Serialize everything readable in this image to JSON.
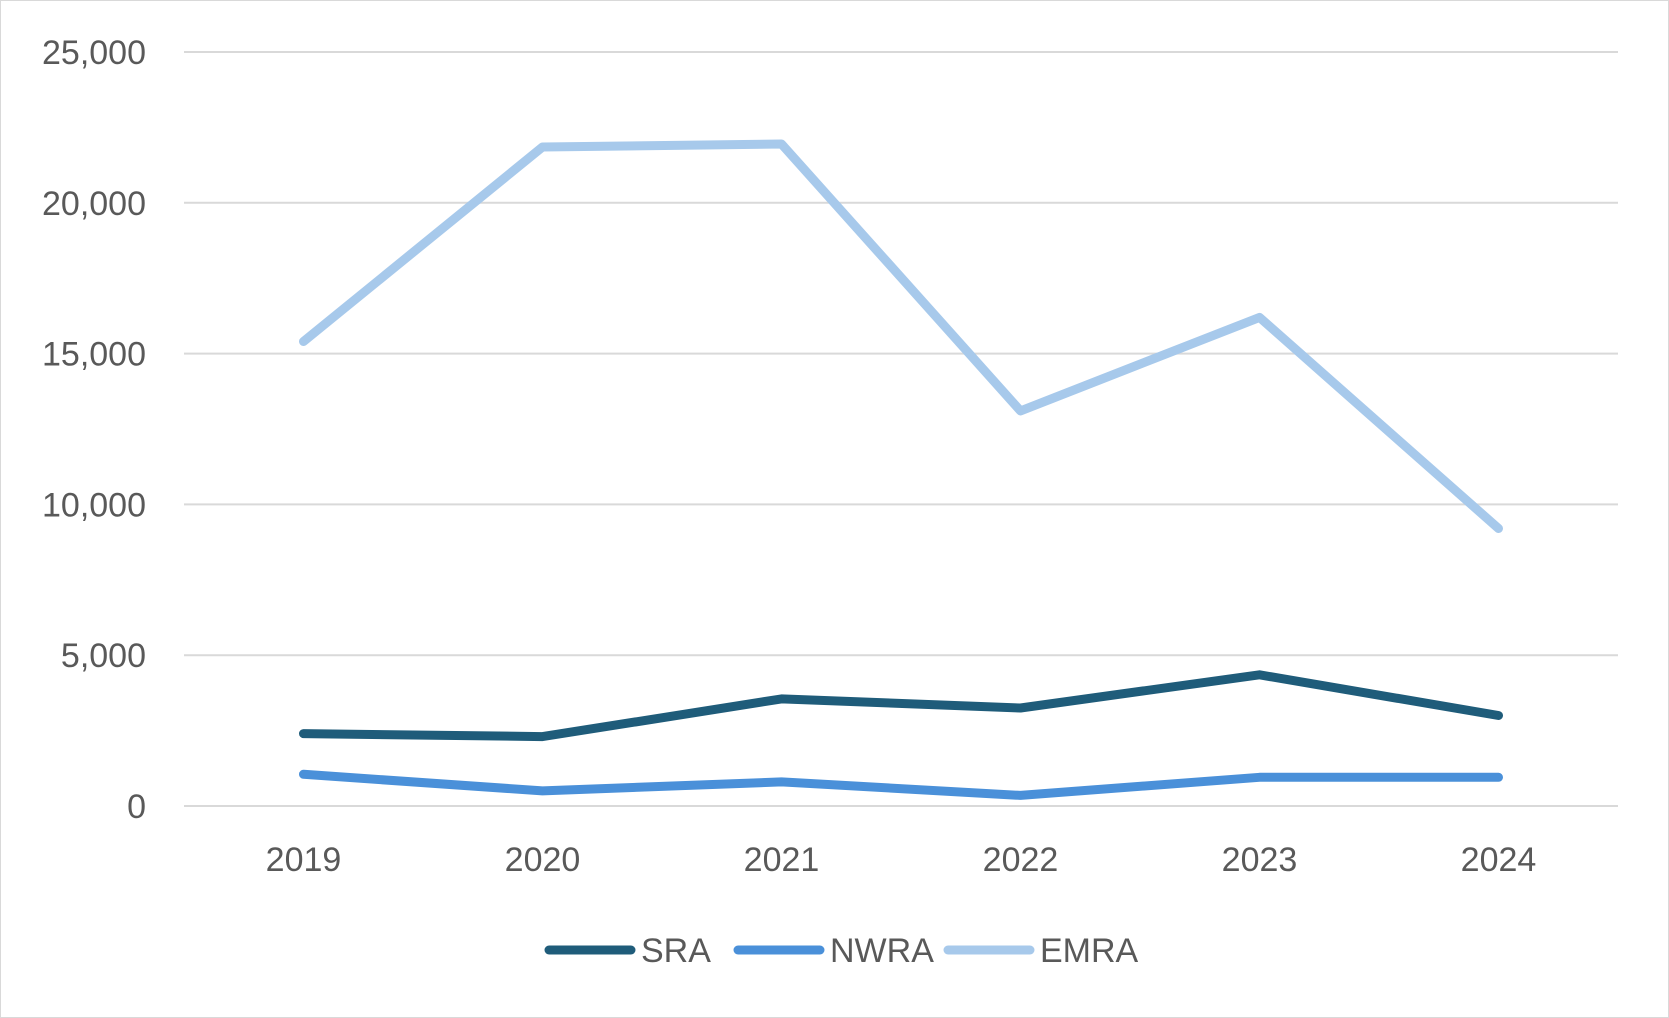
{
  "chart_data": {
    "type": "line",
    "title": "",
    "xlabel": "",
    "ylabel": "",
    "categories": [
      "2019",
      "2020",
      "2021",
      "2022",
      "2023",
      "2024"
    ],
    "ylim": [
      0,
      25000
    ],
    "yticks": [
      0,
      5000,
      10000,
      15000,
      20000,
      25000
    ],
    "ytick_labels": [
      "0",
      "5,000",
      "10,000",
      "15,000",
      "20,000",
      "25,000"
    ],
    "grid": true,
    "legend_position": "bottom",
    "series": [
      {
        "name": "SRA",
        "color": "#1f5c7a",
        "values": [
          2400,
          2300,
          3550,
          3250,
          4350,
          3000
        ]
      },
      {
        "name": "NWRA",
        "color": "#4a90d9",
        "values": [
          1050,
          500,
          800,
          350,
          950,
          950
        ]
      },
      {
        "name": "EMRA",
        "color": "#a7c9eb",
        "values": [
          15400,
          21850,
          21950,
          13100,
          16200,
          9200
        ]
      }
    ]
  }
}
